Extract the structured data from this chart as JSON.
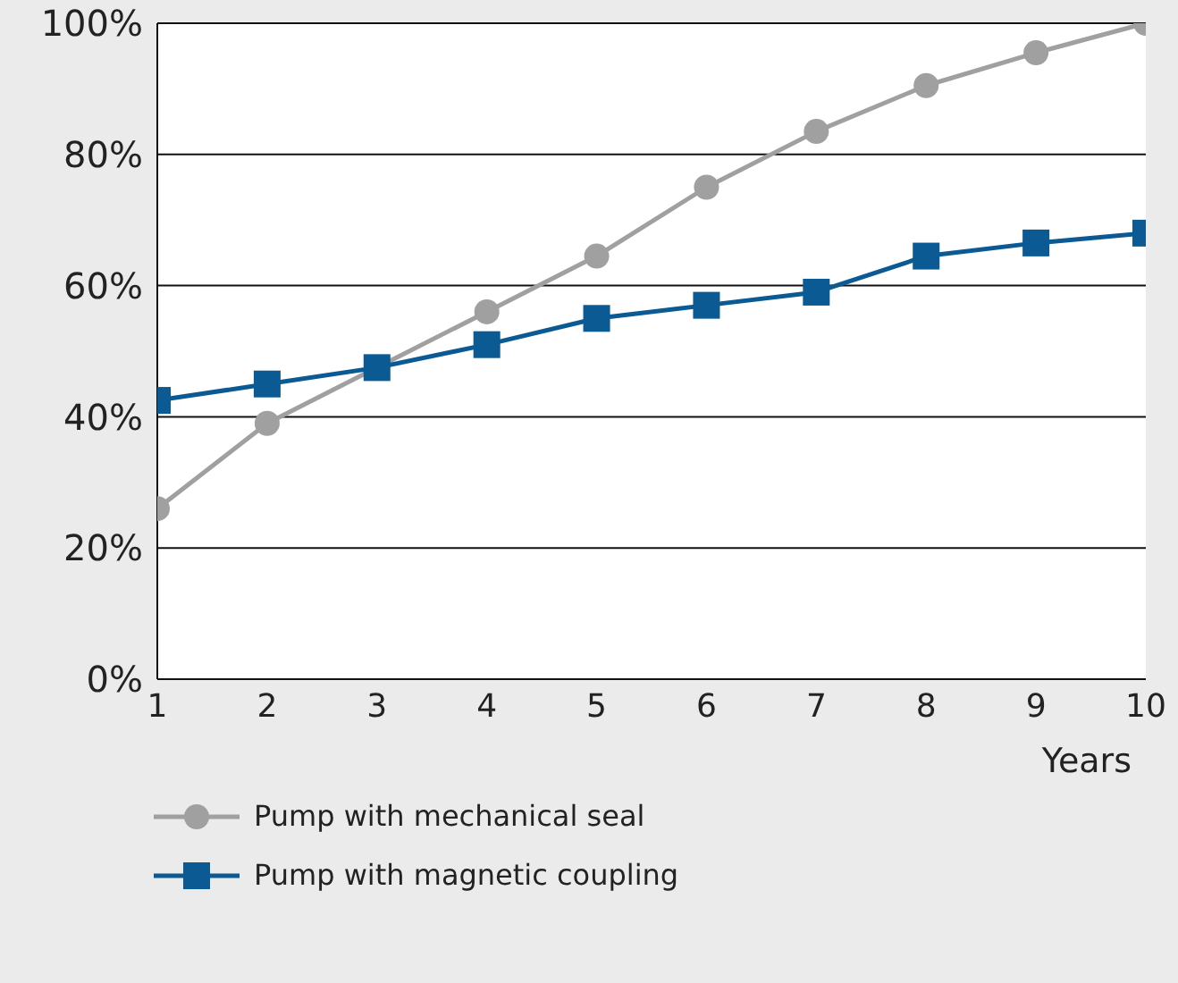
{
  "chart_data": {
    "type": "line",
    "xlabel": "Years",
    "x": [
      1,
      2,
      3,
      4,
      5,
      6,
      7,
      8,
      9,
      10
    ],
    "series": [
      {
        "name": "Pump with mechanical seal",
        "color": "#a0a0a0",
        "marker": "circle",
        "values": [
          26,
          39,
          47.5,
          56,
          64.5,
          75,
          83.5,
          90.5,
          95.5,
          100
        ]
      },
      {
        "name": "Pump with magnetic coupling",
        "color": "#0b5a94",
        "marker": "square",
        "values": [
          42.5,
          45,
          47.5,
          51,
          55,
          57,
          59,
          64.5,
          66.5,
          68
        ]
      }
    ],
    "xlim": [
      1,
      10
    ],
    "xticks": [
      1,
      2,
      3,
      4,
      5,
      6,
      7,
      8,
      9,
      10
    ],
    "ylim": [
      0,
      100
    ],
    "yticks": [
      {
        "value": 0,
        "label": "0%"
      },
      {
        "value": 20,
        "label": "20%"
      },
      {
        "value": 40,
        "label": "40%"
      },
      {
        "value": 60,
        "label": "60%"
      },
      {
        "value": 80,
        "label": "80%"
      },
      {
        "value": 100,
        "label": "100%"
      }
    ],
    "grid": "y",
    "legend": "bottom left",
    "line_style": "solid"
  }
}
